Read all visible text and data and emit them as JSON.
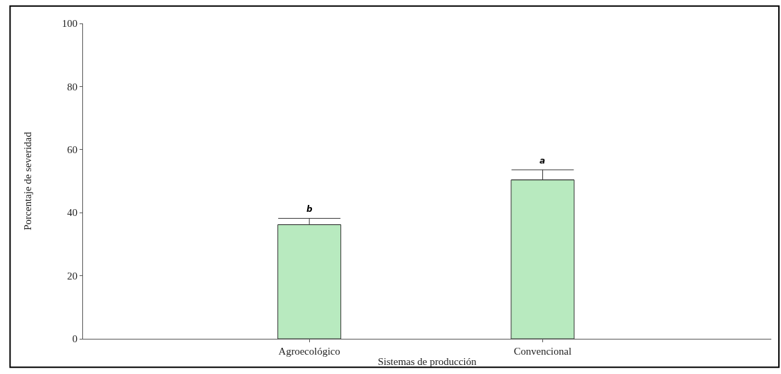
{
  "chart_data": {
    "type": "bar",
    "xlabel": "Sistemas de producción",
    "ylabel": "Porcentaje de severidad",
    "categories": [
      "Agroecológico",
      "Convencional"
    ],
    "values": [
      36.2,
      50.4
    ],
    "errors": [
      [
        36.2,
        38.2
      ],
      [
        50.4,
        53.6
      ]
    ],
    "color": "#b8eabf",
    "ylim": [
      0,
      100
    ],
    "yticks": [
      0,
      20,
      40,
      60,
      80,
      100
    ],
    "annotations": [
      "b",
      "a"
    ]
  }
}
